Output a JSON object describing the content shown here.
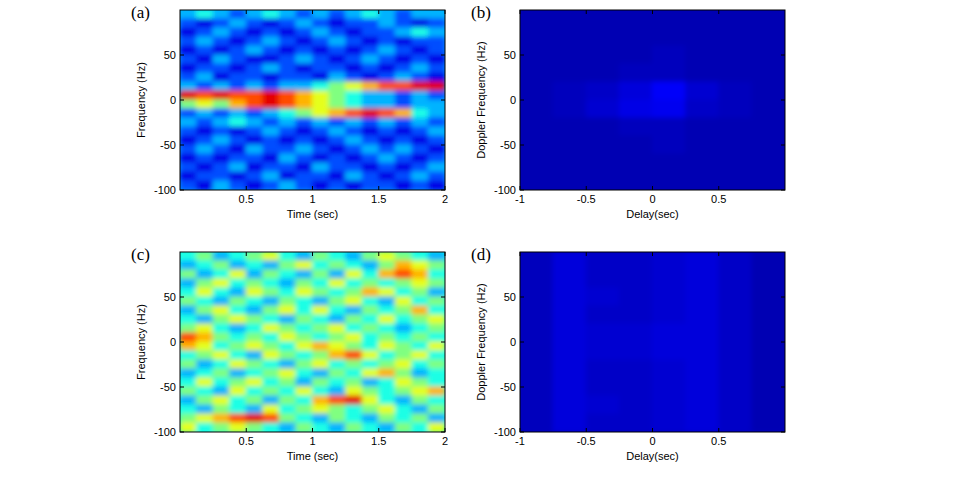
{
  "chart_data": [
    {
      "type": "heatmap",
      "panel_label": "(a)",
      "xlabel": "Time (sec)",
      "ylabel": "Frequency (Hz)",
      "xlim": [
        0,
        2
      ],
      "ylim": [
        -100,
        100
      ],
      "xticks": [
        0.5,
        1,
        1.5,
        2
      ],
      "yticks": [
        -100,
        -50,
        0,
        50
      ],
      "zlim": [
        0,
        1
      ],
      "cells": [
        [
          0.3,
          0.4,
          0.3,
          0.2,
          0.3,
          0.4,
          0.3,
          0.2,
          0.3,
          0.2,
          0.3,
          0.4,
          0.3,
          0.2,
          0.3,
          0.3
        ],
        [
          0.2,
          0.1,
          0.2,
          0.3,
          0.2,
          0.1,
          0.2,
          0.3,
          0.2,
          0.1,
          0.2,
          0.2,
          0.3,
          0.2,
          0.1,
          0.2
        ],
        [
          0.1,
          0.2,
          0.3,
          0.2,
          0.1,
          0.2,
          0.1,
          0.2,
          0.3,
          0.2,
          0.1,
          0.2,
          0.2,
          0.3,
          0.4,
          0.3
        ],
        [
          0.2,
          0.3,
          0.2,
          0.1,
          0.2,
          0.3,
          0.2,
          0.1,
          0.2,
          0.3,
          0.2,
          0.1,
          0.2,
          0.1,
          0.2,
          0.2
        ],
        [
          0.1,
          0.2,
          0.1,
          0.2,
          0.3,
          0.2,
          0.1,
          0.2,
          0.1,
          0.2,
          0.1,
          0.2,
          0.3,
          0.2,
          0.1,
          0.2
        ],
        [
          0.2,
          0.1,
          0.3,
          0.2,
          0.1,
          0.1,
          0.2,
          0.3,
          0.2,
          0.1,
          0.2,
          0.3,
          0.2,
          0.1,
          0.2,
          0.1
        ],
        [
          0.1,
          0.2,
          0.2,
          0.1,
          0.2,
          0.3,
          0.2,
          0.1,
          0.2,
          0.2,
          0.1,
          0.2,
          0.1,
          0.2,
          0.3,
          0.2
        ],
        [
          0.2,
          0.3,
          0.1,
          0.2,
          0.2,
          0.1,
          0.2,
          0.2,
          0.1,
          0.3,
          0.2,
          0.1,
          0.2,
          0.3,
          0.2,
          0.1
        ],
        [
          0.3,
          0.2,
          0.3,
          0.2,
          0.3,
          0.2,
          0.3,
          0.3,
          0.4,
          0.5,
          0.6,
          0.7,
          0.8,
          0.8,
          0.9,
          0.9
        ],
        [
          0.9,
          0.8,
          0.9,
          0.8,
          0.8,
          0.9,
          0.8,
          0.7,
          0.6,
          0.5,
          0.4,
          0.3,
          0.3,
          0.2,
          0.3,
          0.2
        ],
        [
          0.5,
          0.6,
          0.5,
          0.7,
          0.8,
          0.9,
          0.8,
          0.7,
          0.6,
          0.5,
          0.4,
          0.3,
          0.3,
          0.2,
          0.3,
          0.3
        ],
        [
          0.2,
          0.3,
          0.2,
          0.3,
          0.2,
          0.3,
          0.4,
          0.5,
          0.6,
          0.7,
          0.8,
          0.9,
          0.8,
          0.7,
          0.4,
          0.3
        ],
        [
          0.3,
          0.2,
          0.3,
          0.4,
          0.3,
          0.2,
          0.3,
          0.2,
          0.3,
          0.2,
          0.3,
          0.2,
          0.3,
          0.2,
          0.3,
          0.2
        ],
        [
          0.2,
          0.1,
          0.2,
          0.1,
          0.2,
          0.3,
          0.2,
          0.1,
          0.2,
          0.3,
          0.2,
          0.1,
          0.2,
          0.1,
          0.2,
          0.3
        ],
        [
          0.1,
          0.2,
          0.3,
          0.2,
          0.1,
          0.2,
          0.1,
          0.2,
          0.1,
          0.2,
          0.3,
          0.2,
          0.1,
          0.2,
          0.1,
          0.2
        ],
        [
          0.2,
          0.3,
          0.2,
          0.1,
          0.3,
          0.2,
          0.2,
          0.3,
          0.2,
          0.1,
          0.2,
          0.3,
          0.2,
          0.3,
          0.2,
          0.1
        ],
        [
          0.1,
          0.2,
          0.1,
          0.2,
          0.2,
          0.1,
          0.3,
          0.2,
          0.1,
          0.2,
          0.1,
          0.2,
          0.3,
          0.2,
          0.1,
          0.2
        ],
        [
          0.2,
          0.1,
          0.2,
          0.3,
          0.1,
          0.2,
          0.2,
          0.1,
          0.3,
          0.2,
          0.2,
          0.1,
          0.2,
          0.1,
          0.2,
          0.3
        ],
        [
          0.1,
          0.2,
          0.2,
          0.1,
          0.2,
          0.3,
          0.1,
          0.2,
          0.2,
          0.1,
          0.3,
          0.2,
          0.1,
          0.2,
          0.3,
          0.2
        ],
        [
          0.2,
          0.1,
          0.3,
          0.2,
          0.1,
          0.2,
          0.3,
          0.2,
          0.1,
          0.2,
          0.1,
          0.2,
          0.2,
          0.1,
          0.2,
          0.1
        ]
      ]
    },
    {
      "type": "heatmap",
      "panel_label": "(b)",
      "xlabel": "Delay(sec)",
      "ylabel": "Doppler Frequency (Hz)",
      "xlim": [
        -1,
        1
      ],
      "ylim": [
        -100,
        100
      ],
      "xticks": [
        -1,
        -0.5,
        0,
        0.5
      ],
      "yticks": [
        -100,
        -50,
        0,
        50
      ],
      "zlim": [
        0,
        1
      ],
      "cells": [
        [
          0.05,
          0.05,
          0.05,
          0.05,
          0.05,
          0.05,
          0.05,
          0.05
        ],
        [
          0.05,
          0.05,
          0.05,
          0.05,
          0.05,
          0.05,
          0.05,
          0.05
        ],
        [
          0.05,
          0.05,
          0.05,
          0.05,
          0.06,
          0.05,
          0.05,
          0.05
        ],
        [
          0.05,
          0.05,
          0.05,
          0.06,
          0.06,
          0.05,
          0.05,
          0.05
        ],
        [
          0.05,
          0.06,
          0.07,
          0.09,
          0.12,
          0.08,
          0.06,
          0.05
        ],
        [
          0.05,
          0.06,
          0.08,
          0.1,
          0.11,
          0.07,
          0.06,
          0.05
        ],
        [
          0.05,
          0.05,
          0.05,
          0.06,
          0.06,
          0.05,
          0.05,
          0.05
        ],
        [
          0.05,
          0.05,
          0.05,
          0.05,
          0.06,
          0.05,
          0.05,
          0.05
        ],
        [
          0.05,
          0.05,
          0.05,
          0.05,
          0.05,
          0.05,
          0.05,
          0.05
        ],
        [
          0.05,
          0.05,
          0.05,
          0.05,
          0.05,
          0.05,
          0.05,
          0.05
        ]
      ]
    },
    {
      "type": "heatmap",
      "panel_label": "(c)",
      "xlabel": "Time (sec)",
      "ylabel": "Frequency (Hz)",
      "xlim": [
        0,
        2
      ],
      "ylim": [
        -100,
        100
      ],
      "xticks": [
        0.5,
        1,
        1.5,
        2
      ],
      "yticks": [
        -100,
        -50,
        0,
        50
      ],
      "zlim": [
        0,
        1
      ],
      "cells": [
        [
          0.4,
          0.5,
          0.3,
          0.4,
          0.5,
          0.6,
          0.4,
          0.3,
          0.5,
          0.4,
          0.3,
          0.5,
          0.6,
          0.5,
          0.4,
          0.3
        ],
        [
          0.3,
          0.4,
          0.5,
          0.3,
          0.4,
          0.3,
          0.5,
          0.6,
          0.4,
          0.5,
          0.4,
          0.3,
          0.5,
          0.7,
          0.6,
          0.5
        ],
        [
          0.5,
          0.3,
          0.4,
          0.6,
          0.3,
          0.5,
          0.4,
          0.3,
          0.5,
          0.3,
          0.6,
          0.4,
          0.7,
          0.8,
          0.7,
          0.4
        ],
        [
          0.3,
          0.5,
          0.6,
          0.4,
          0.5,
          0.4,
          0.3,
          0.5,
          0.4,
          0.6,
          0.4,
          0.5,
          0.4,
          0.5,
          0.6,
          0.5
        ],
        [
          0.4,
          0.6,
          0.4,
          0.3,
          0.6,
          0.5,
          0.4,
          0.6,
          0.5,
          0.4,
          0.5,
          0.7,
          0.6,
          0.4,
          0.5,
          0.3
        ],
        [
          0.5,
          0.4,
          0.3,
          0.5,
          0.4,
          0.3,
          0.5,
          0.4,
          0.3,
          0.5,
          0.6,
          0.4,
          0.3,
          0.6,
          0.4,
          0.5
        ],
        [
          0.3,
          0.5,
          0.6,
          0.4,
          0.3,
          0.5,
          0.6,
          0.4,
          0.6,
          0.4,
          0.3,
          0.5,
          0.4,
          0.5,
          0.7,
          0.4
        ],
        [
          0.4,
          0.3,
          0.5,
          0.6,
          0.5,
          0.4,
          0.3,
          0.5,
          0.4,
          0.3,
          0.5,
          0.4,
          0.6,
          0.4,
          0.5,
          0.6
        ],
        [
          0.5,
          0.6,
          0.4,
          0.3,
          0.4,
          0.6,
          0.5,
          0.4,
          0.5,
          0.6,
          0.4,
          0.5,
          0.4,
          0.3,
          0.4,
          0.5
        ],
        [
          0.8,
          0.7,
          0.5,
          0.4,
          0.5,
          0.4,
          0.6,
          0.5,
          0.4,
          0.5,
          0.6,
          0.4,
          0.5,
          0.4,
          0.5,
          0.4
        ],
        [
          0.7,
          0.6,
          0.4,
          0.5,
          0.6,
          0.5,
          0.4,
          0.6,
          0.7,
          0.6,
          0.5,
          0.4,
          0.6,
          0.5,
          0.4,
          0.6
        ],
        [
          0.4,
          0.5,
          0.6,
          0.4,
          0.3,
          0.6,
          0.5,
          0.4,
          0.5,
          0.7,
          0.8,
          0.6,
          0.4,
          0.5,
          0.6,
          0.4
        ],
        [
          0.5,
          0.3,
          0.4,
          0.6,
          0.5,
          0.4,
          0.3,
          0.5,
          0.6,
          0.4,
          0.5,
          0.4,
          0.5,
          0.6,
          0.4,
          0.5
        ],
        [
          0.3,
          0.4,
          0.5,
          0.3,
          0.4,
          0.5,
          0.6,
          0.4,
          0.3,
          0.5,
          0.4,
          0.6,
          0.7,
          0.5,
          0.3,
          0.4
        ],
        [
          0.4,
          0.6,
          0.4,
          0.5,
          0.6,
          0.4,
          0.5,
          0.3,
          0.5,
          0.4,
          0.5,
          0.3,
          0.4,
          0.6,
          0.5,
          0.4
        ],
        [
          0.5,
          0.4,
          0.3,
          0.6,
          0.4,
          0.5,
          0.4,
          0.6,
          0.4,
          0.3,
          0.6,
          0.5,
          0.4,
          0.5,
          0.6,
          0.7
        ],
        [
          0.3,
          0.5,
          0.6,
          0.4,
          0.5,
          0.3,
          0.5,
          0.4,
          0.7,
          0.8,
          0.9,
          0.6,
          0.4,
          0.3,
          0.5,
          0.4
        ],
        [
          0.4,
          0.3,
          0.5,
          0.4,
          0.3,
          0.6,
          0.4,
          0.5,
          0.6,
          0.5,
          0.4,
          0.5,
          0.6,
          0.4,
          0.3,
          0.5
        ],
        [
          0.5,
          0.6,
          0.7,
          0.8,
          0.9,
          0.8,
          0.5,
          0.4,
          0.3,
          0.5,
          0.4,
          0.3,
          0.5,
          0.4,
          0.5,
          0.3
        ],
        [
          0.6,
          0.4,
          0.5,
          0.6,
          0.5,
          0.4,
          0.3,
          0.5,
          0.4,
          0.3,
          0.5,
          0.4,
          0.3,
          0.5,
          0.4,
          0.6
        ]
      ]
    },
    {
      "type": "heatmap",
      "panel_label": "(d)",
      "xlabel": "Delay(sec)",
      "ylabel": "Doppler Frequency (Hz)",
      "xlim": [
        -1,
        1
      ],
      "ylim": [
        -100,
        100
      ],
      "xticks": [
        -1,
        -0.5,
        0,
        0.5
      ],
      "yticks": [
        -100,
        -50,
        0,
        50
      ],
      "zlim": [
        0,
        1
      ],
      "cells": [
        [
          0.06,
          0.09,
          0.07,
          0.07,
          0.08,
          0.09,
          0.07,
          0.05
        ],
        [
          0.06,
          0.09,
          0.07,
          0.07,
          0.08,
          0.09,
          0.07,
          0.05
        ],
        [
          0.06,
          0.09,
          0.08,
          0.07,
          0.08,
          0.09,
          0.07,
          0.05
        ],
        [
          0.06,
          0.09,
          0.07,
          0.07,
          0.08,
          0.09,
          0.07,
          0.05
        ],
        [
          0.06,
          0.09,
          0.08,
          0.08,
          0.09,
          0.09,
          0.07,
          0.05
        ],
        [
          0.06,
          0.09,
          0.08,
          0.08,
          0.09,
          0.09,
          0.07,
          0.05
        ],
        [
          0.06,
          0.09,
          0.07,
          0.07,
          0.08,
          0.09,
          0.07,
          0.05
        ],
        [
          0.06,
          0.09,
          0.07,
          0.07,
          0.08,
          0.09,
          0.07,
          0.05
        ],
        [
          0.06,
          0.09,
          0.08,
          0.07,
          0.08,
          0.09,
          0.07,
          0.05
        ],
        [
          0.06,
          0.09,
          0.07,
          0.07,
          0.08,
          0.09,
          0.07,
          0.05
        ]
      ]
    }
  ]
}
